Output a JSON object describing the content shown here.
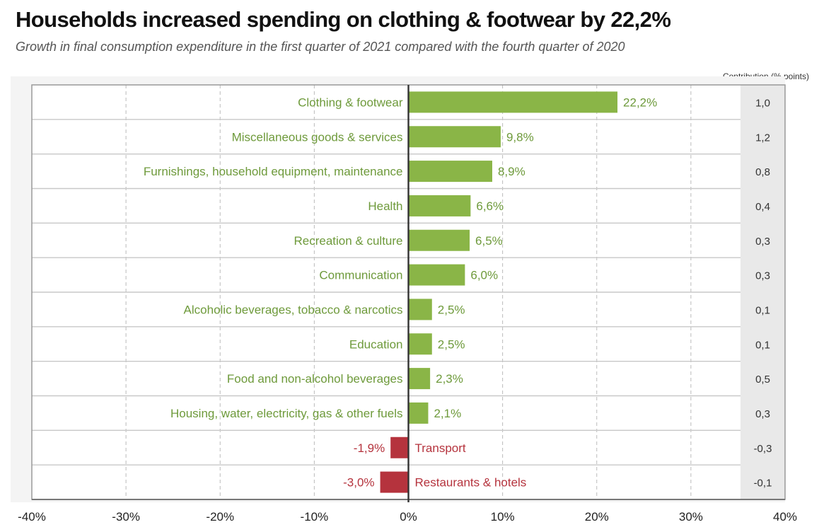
{
  "title": "Households increased spending on clothing & footwear by 22,2%",
  "subtitle": "Growth in final consumption expenditure in the first quarter of 2021 compared with the fourth quarter of 2020",
  "contribution_header": "Contribution (% points)",
  "colors": {
    "positive": "#8ab547",
    "negative": "#b5333d",
    "positive_text": "#6e9a3b",
    "negative_text": "#b5333d",
    "contribution_bg": "#e9e9e9",
    "grid": "#bbbbbb",
    "axis": "#333333"
  },
  "chart_data": {
    "type": "bar",
    "orientation": "horizontal",
    "xlim": [
      -40,
      40
    ],
    "x_ticks": [
      "-40%",
      "-30%",
      "-20%",
      "-10%",
      "0%",
      "10%",
      "20%",
      "30%",
      "40%"
    ],
    "x_tick_values": [
      -40,
      -30,
      -20,
      -10,
      0,
      10,
      20,
      30,
      40
    ],
    "grid": true,
    "categories": [
      "Clothing & footwear",
      "Miscellaneous goods & services",
      "Furnishings, household equipment, maintenance",
      "Health",
      "Recreation & culture",
      "Communication",
      "Alcoholic beverages, tobacco & narcotics",
      "Education",
      "Food and non-alcohol beverages",
      "Housing, water, electricity, gas & other fuels",
      "Transport",
      "Restaurants & hotels"
    ],
    "values": [
      22.2,
      9.8,
      8.9,
      6.6,
      6.5,
      6.0,
      2.5,
      2.5,
      2.3,
      2.1,
      -1.9,
      -3.0
    ],
    "value_labels": [
      "22,2%",
      "9,8%",
      "8,9%",
      "6,6%",
      "6,5%",
      "6,0%",
      "2,5%",
      "2,5%",
      "2,3%",
      "2,1%",
      "-1,9%",
      "-3,0%"
    ],
    "contributions": [
      "1,0",
      "1,2",
      "0,8",
      "0,4",
      "0,3",
      "0,3",
      "0,1",
      "0,1",
      "0,5",
      "0,3",
      "-0,3",
      "-0,1"
    ]
  }
}
